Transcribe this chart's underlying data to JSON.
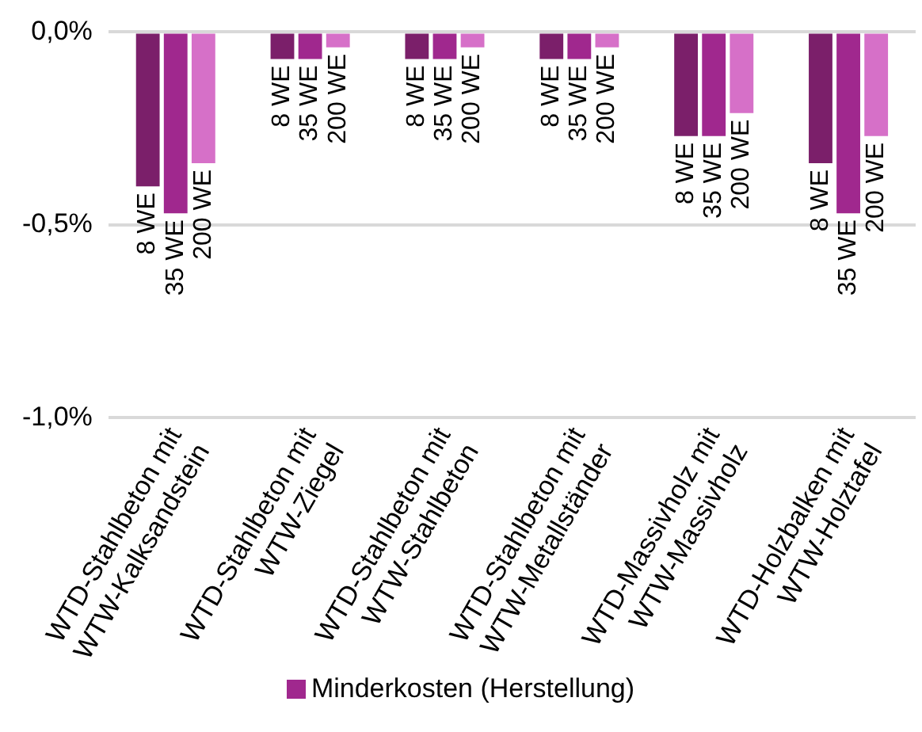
{
  "chart_data": {
    "type": "bar",
    "categories": [
      "WTD-Stahlbeton mit\nWTW-Kalksandstein",
      "WTD-Stahlbeton mit\nWTW-Ziegel",
      "WTD-Stahlbeton mit\nWTW-Stahlbeton",
      "WTD-Stahlbeton mit\nWTW-Metallständer",
      "WTD-Massivholz mit\nWTW-Massivholz",
      "WTD-Holzbalken mit\nWTW-Holztafel"
    ],
    "series": [
      {
        "name": "8 WE",
        "color": "#7b1f6a",
        "values": [
          -0.4,
          -0.07,
          -0.07,
          -0.07,
          -0.27,
          -0.34
        ]
      },
      {
        "name": "35 WE",
        "color": "#a0288e",
        "values": [
          -0.47,
          -0.07,
          -0.07,
          -0.07,
          -0.27,
          -0.47
        ]
      },
      {
        "name": "200 WE",
        "color": "#d670c8",
        "values": [
          -0.34,
          -0.04,
          -0.04,
          -0.04,
          -0.21,
          -0.27
        ]
      }
    ],
    "legend_title": "Minderkosten (Herstellung)",
    "ylim": [
      -1.0,
      0.0
    ],
    "yticks": [
      {
        "value": 0,
        "label": "0,0%"
      },
      {
        "value": -0.5,
        "label": "-0,5%"
      },
      {
        "value": -1.0,
        "label": "-1,0%"
      }
    ],
    "grid": "y"
  }
}
